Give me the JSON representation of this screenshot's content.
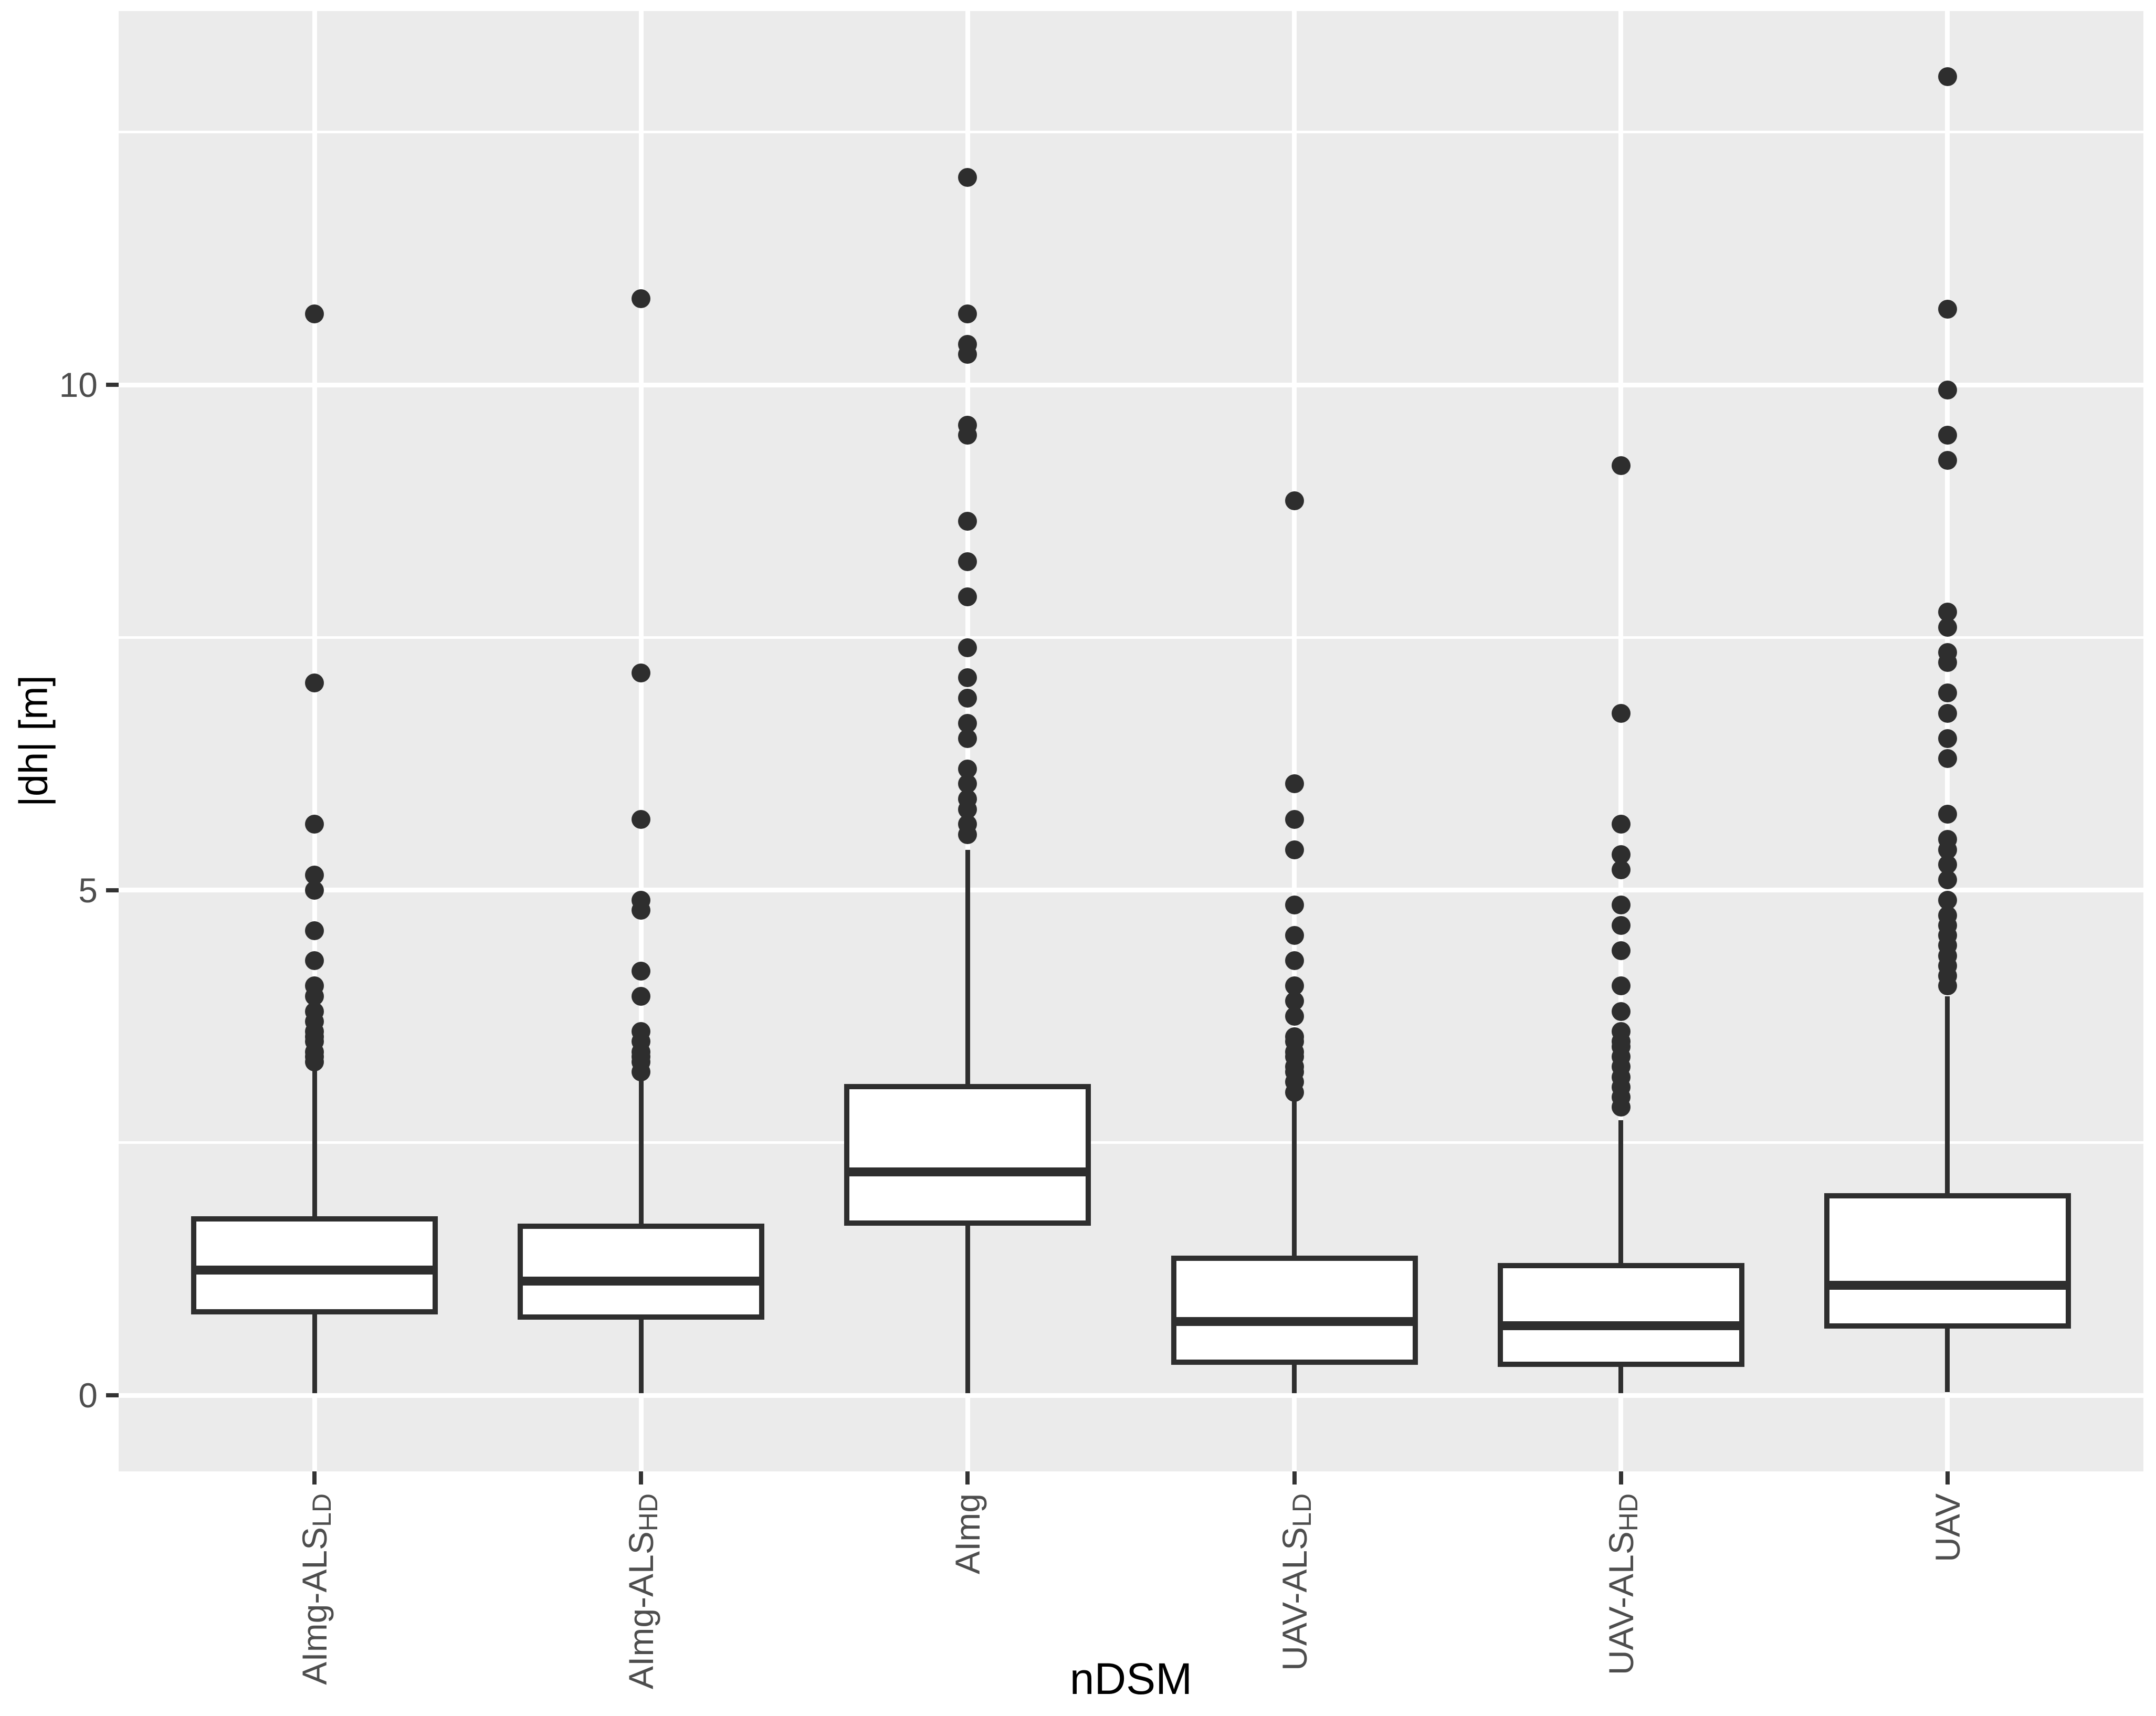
{
  "chart_data": {
    "type": "boxplot",
    "title": "",
    "xlabel": "nDSM",
    "ylabel": "|dh| [m]",
    "ylim": [
      -0.75,
      13.7
    ],
    "yticks_major": [
      0,
      5,
      10
    ],
    "yticks_minor": [
      2.5,
      7.5,
      12.5
    ],
    "grid": "white major+minor horizontal lines and major vertical lines on grey panel",
    "legend": "none",
    "categories": [
      "AImg-ALS_LD",
      "AImg-ALS_HD",
      "AImg",
      "UAV-ALS_LD",
      "UAV-ALS_HD",
      "UAV"
    ],
    "series": [
      {
        "label": "AImg-ALS",
        "label_sub": "LD",
        "q1": 0.8,
        "median": 1.24,
        "q3": 1.77,
        "whisker_low": 0.02,
        "whisker_high": 3.22,
        "outliers": [
          10.7,
          7.05,
          5.65,
          5.15,
          5.0,
          4.6,
          4.3,
          4.05,
          3.95,
          3.8,
          3.7,
          3.6,
          3.55,
          3.5,
          3.4,
          3.35,
          3.3
        ]
      },
      {
        "label": "AImg-ALS",
        "label_sub": "HD",
        "q1": 0.75,
        "median": 1.13,
        "q3": 1.7,
        "whisker_low": 0.02,
        "whisker_high": 3.13,
        "outliers": [
          10.85,
          7.15,
          5.7,
          4.9,
          4.8,
          4.2,
          3.95,
          3.6,
          3.5,
          3.4,
          3.35,
          3.3,
          3.2
        ]
      },
      {
        "label": "AImg",
        "label_sub": "",
        "q1": 1.68,
        "median": 2.21,
        "q3": 3.08,
        "whisker_low": 0.02,
        "whisker_high": 5.4,
        "outliers": [
          12.05,
          10.7,
          10.4,
          10.3,
          9.6,
          9.5,
          8.65,
          8.25,
          7.9,
          7.4,
          7.1,
          6.9,
          6.65,
          6.5,
          6.2,
          6.05,
          5.9,
          5.8,
          5.65,
          5.55
        ]
      },
      {
        "label": "UAV-ALS",
        "label_sub": "LD",
        "q1": 0.3,
        "median": 0.73,
        "q3": 1.38,
        "whisker_low": 0.02,
        "whisker_high": 2.92,
        "outliers": [
          8.85,
          6.05,
          5.7,
          5.4,
          4.85,
          4.55,
          4.3,
          4.05,
          3.9,
          3.75,
          3.55,
          3.5,
          3.4,
          3.35,
          3.25,
          3.2,
          3.1,
          3.0
        ]
      },
      {
        "label": "UAV-ALS",
        "label_sub": "HD",
        "q1": 0.28,
        "median": 0.69,
        "q3": 1.31,
        "whisker_low": 0.02,
        "whisker_high": 2.72,
        "outliers": [
          9.2,
          6.75,
          5.65,
          5.35,
          5.2,
          4.85,
          4.65,
          4.4,
          4.05,
          3.8,
          3.6,
          3.5,
          3.45,
          3.35,
          3.25,
          3.15,
          3.05,
          2.95,
          2.85
        ]
      },
      {
        "label": "UAV",
        "label_sub": "",
        "q1": 0.66,
        "median": 1.09,
        "q3": 2.0,
        "whisker_low": 0.03,
        "whisker_high": 3.95,
        "outliers": [
          13.05,
          10.75,
          9.95,
          9.5,
          9.25,
          7.75,
          7.6,
          7.35,
          7.25,
          6.95,
          6.75,
          6.5,
          6.3,
          5.75,
          5.5,
          5.4,
          5.25,
          5.1,
          4.9,
          4.75,
          4.65,
          4.55,
          4.45,
          4.35,
          4.25,
          4.15,
          4.05
        ]
      }
    ]
  },
  "colors": {
    "page_bg": "#ffffff",
    "panel_bg": "#ebebeb",
    "grid": "#ffffff",
    "box_stroke": "#2e2e2e",
    "box_fill": "#ffffff",
    "outlier_dot": "#2e2e2e",
    "tick_mark": "#333333",
    "tick_label": "#4d4d4d",
    "axis_title": "#000000"
  }
}
